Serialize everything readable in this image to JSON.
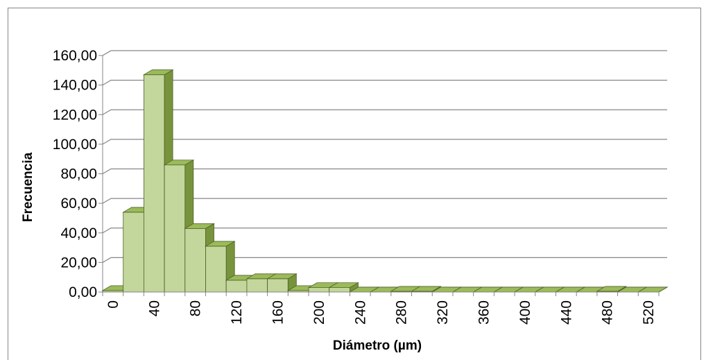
{
  "chart_data": {
    "type": "bar",
    "style": "3d-column",
    "title": "",
    "xlabel": "Diámetro (µm)",
    "ylabel": "Frecuencia",
    "ylim": [
      0,
      160
    ],
    "ytick_labels": [
      "0,00",
      "20,00",
      "40,00",
      "60,00",
      "80,00",
      "100,00",
      "120,00",
      "140,00",
      "160,00"
    ],
    "ytick_values": [
      0,
      20,
      40,
      60,
      80,
      100,
      120,
      140,
      160
    ],
    "categories": [
      0,
      20,
      40,
      60,
      80,
      100,
      120,
      140,
      160,
      180,
      200,
      220,
      240,
      260,
      280,
      300,
      320,
      340,
      360,
      380,
      400,
      420,
      440,
      460,
      480,
      500,
      520
    ],
    "xtick_labels": [
      "0",
      "40",
      "80",
      "120",
      "160",
      "200",
      "240",
      "280",
      "320",
      "360",
      "400",
      "440",
      "480",
      "520"
    ],
    "values": [
      1,
      54,
      147,
      86,
      43,
      31,
      8,
      9,
      9,
      1,
      3,
      3,
      0,
      0,
      0.5,
      0.5,
      0,
      0,
      0,
      0,
      0,
      0,
      0,
      0,
      0.5,
      0,
      0
    ],
    "grid": true,
    "legend": "none",
    "colors": {
      "bar_front": "#c3d69b",
      "bar_side": "#77933c",
      "bar_top": "#9bbb59",
      "bar_edge": "#4f6228",
      "grid": "#868686",
      "border": "#868686"
    }
  }
}
